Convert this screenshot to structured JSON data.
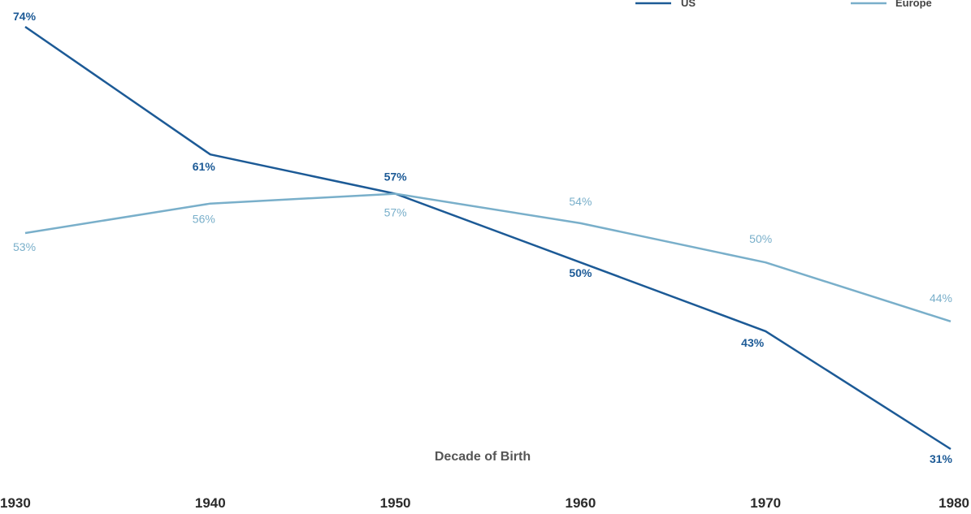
{
  "chart_data": {
    "type": "line",
    "title": "",
    "xlabel": "Decade of Birth",
    "ylabel": "",
    "x": [
      "1930",
      "1940",
      "1950",
      "1960",
      "1970",
      "1980"
    ],
    "ylim": [
      31,
      74
    ],
    "grid": false,
    "legend": "top-right",
    "series": [
      {
        "name": "US",
        "values": [
          74,
          61,
          57,
          50,
          43,
          31
        ],
        "labels": [
          "74%",
          "61%",
          "57%",
          "50%",
          "43%",
          "31%"
        ],
        "color": "#1c5a96"
      },
      {
        "name": "Europe",
        "values": [
          53,
          56,
          57,
          54,
          50,
          44
        ],
        "labels": [
          "53%",
          "56%",
          "57%",
          "54%",
          "50%",
          "44%"
        ],
        "color": "#79afca"
      }
    ]
  },
  "colors": {
    "axis_text": "#2b2b2b",
    "xlabel_text": "#555555"
  }
}
